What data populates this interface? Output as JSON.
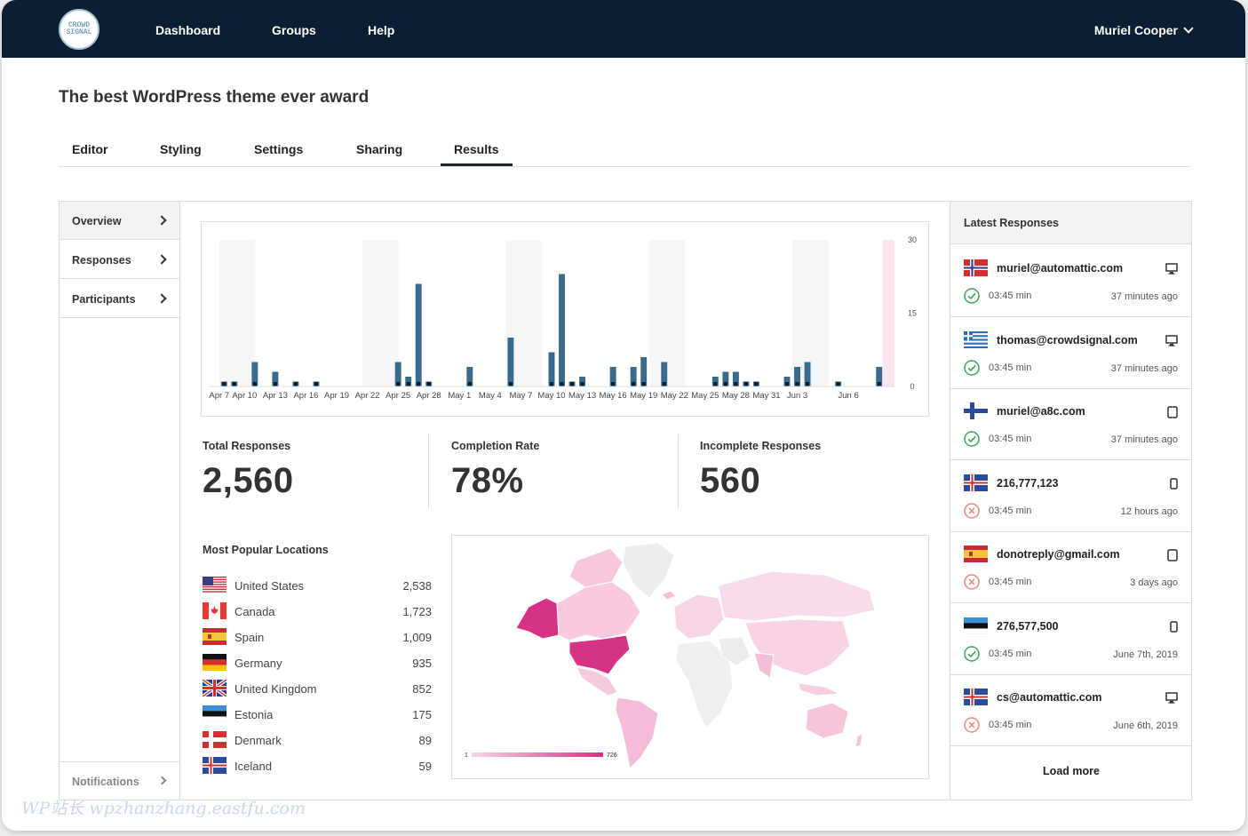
{
  "nav": {
    "logo_text": "CROWD SIGNAL",
    "items": [
      "Dashboard",
      "Groups",
      "Help"
    ],
    "user": "Muriel Cooper"
  },
  "page_title": "The best WordPress theme ever award",
  "tabs": [
    "Editor",
    "Styling",
    "Settings",
    "Sharing",
    "Results"
  ],
  "active_tab": "Results",
  "sidebar": {
    "items": [
      "Overview",
      "Responses",
      "Participants"
    ],
    "footer": "Notifications"
  },
  "chart_data": {
    "type": "bar",
    "x_tick_labels": [
      "Apr 7",
      "Apr 10",
      "Apr 13",
      "Apr 16",
      "Apr 19",
      "Apr 22",
      "Apr 25",
      "Apr 28",
      "May 1",
      "May 4",
      "May 7",
      "May 10",
      "May 13",
      "May 16",
      "May 19",
      "May 22",
      "May 25",
      "May 28",
      "May 31",
      "Jun 3",
      "Jun 6"
    ],
    "y_ticks": [
      0,
      15,
      30
    ],
    "ylim": [
      0,
      30
    ],
    "y_axis_side": "right",
    "values": [
      0,
      1,
      1,
      0,
      5,
      0,
      3,
      0,
      1,
      0,
      1,
      0,
      0,
      0,
      0,
      0,
      0,
      0,
      5,
      2,
      21,
      1,
      0,
      0,
      0,
      4,
      0,
      0,
      0,
      10,
      0,
      0,
      0,
      7,
      23,
      1,
      2,
      0,
      0,
      4,
      0,
      4,
      6,
      0,
      5,
      0,
      0,
      0,
      0,
      2,
      3,
      3,
      1,
      1,
      0,
      0,
      2,
      4,
      5,
      0,
      0,
      1,
      0,
      0,
      0,
      4,
      0
    ],
    "highlight_last": true,
    "bar_color": "#3a6a8c"
  },
  "stats": [
    {
      "label": "Total Responses",
      "value": "2,560"
    },
    {
      "label": "Completion Rate",
      "value": "78%"
    },
    {
      "label": "Incomplete Responses",
      "value": "560"
    }
  ],
  "locations": {
    "title": "Most Popular Locations",
    "rows": [
      {
        "country": "United States",
        "count": "2,538",
        "flag": "us"
      },
      {
        "country": "Canada",
        "count": "1,723",
        "flag": "ca"
      },
      {
        "country": "Spain",
        "count": "1,009",
        "flag": "es"
      },
      {
        "country": "Germany",
        "count": "935",
        "flag": "de"
      },
      {
        "country": "United Kingdom",
        "count": "852",
        "flag": "gb"
      },
      {
        "country": "Estonia",
        "count": "175",
        "flag": "ee"
      },
      {
        "country": "Denmark",
        "count": "89",
        "flag": "dk"
      },
      {
        "country": "Iceland",
        "count": "59",
        "flag": "is"
      }
    ]
  },
  "map": {
    "legend_min": "1",
    "legend_max": "726",
    "high_color": "#d63384",
    "low_color": "#f8d5e6"
  },
  "latest": {
    "title": "Latest Responses",
    "items": [
      {
        "who": "muriel@automattic.com",
        "flag": "no",
        "duration": "03:45 min",
        "when": "37 minutes ago",
        "complete": true,
        "device": "desktop"
      },
      {
        "who": "thomas@crowdsignal.com",
        "flag": "gr",
        "duration": "03:45 min",
        "when": "37 minutes ago",
        "complete": true,
        "device": "desktop"
      },
      {
        "who": "muriel@a8c.com",
        "flag": "fi",
        "duration": "03:45 min",
        "when": "37 minutes ago",
        "complete": true,
        "device": "tablet"
      },
      {
        "who": "216,777,123",
        "flag": "is",
        "duration": "03:45 min",
        "when": "12 hours ago",
        "complete": false,
        "device": "phone"
      },
      {
        "who": "donotreply@gmail.com",
        "flag": "es",
        "duration": "03:45 min",
        "when": "3 days ago",
        "complete": false,
        "device": "tablet"
      },
      {
        "who": "276,577,500",
        "flag": "ee",
        "duration": "03:45 min",
        "when": "June 7th, 2019",
        "complete": true,
        "device": "phone"
      },
      {
        "who": "cs@automattic.com",
        "flag": "is",
        "duration": "03:45 min",
        "when": "June 6th, 2019",
        "complete": false,
        "device": "desktop"
      }
    ],
    "load_more": "Load more"
  },
  "watermark": "WP站长 wpzhanzhang.eastfu.com"
}
